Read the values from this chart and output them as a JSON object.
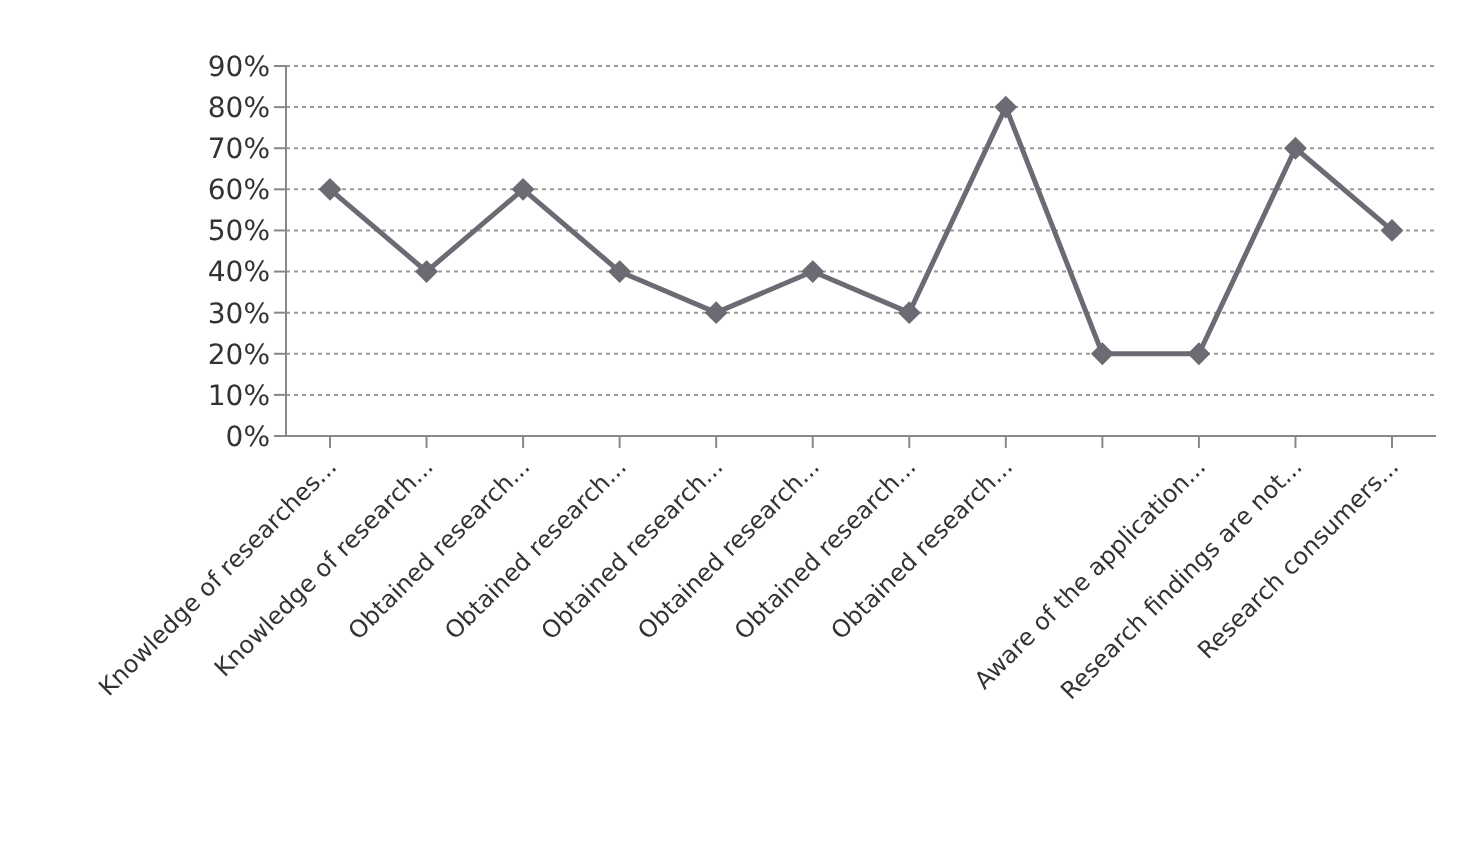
{
  "chart_data": {
    "type": "line",
    "categories": [
      "Knowledge of researches...",
      "Knowledge of research...",
      "Obtained research...",
      "Obtained research...",
      "Obtained research...",
      "Obtained research...",
      "Obtained research...",
      "Obtained research...",
      null,
      "Aware of the application...",
      "Research findings are not...",
      "Research consumers..."
    ],
    "series": [
      {
        "color": "#6b6b73",
        "values": [
          60,
          40,
          60,
          40,
          30,
          40,
          30,
          80,
          20,
          20,
          70,
          50
        ]
      }
    ],
    "ylim": [
      0,
      90
    ],
    "yticks": [
      {
        "value": 0,
        "label": "0%"
      },
      {
        "value": 10,
        "label": "10%"
      },
      {
        "value": 20,
        "label": "20%"
      },
      {
        "value": 30,
        "label": "30%"
      },
      {
        "value": 40,
        "label": "40%"
      },
      {
        "value": 50,
        "label": "50%"
      },
      {
        "value": 60,
        "label": "60%"
      },
      {
        "value": 70,
        "label": "70%"
      },
      {
        "value": 80,
        "label": "80%"
      },
      {
        "value": 90,
        "label": "90%"
      }
    ],
    "grid": "y",
    "marker": "diamond",
    "line_style": "solid"
  }
}
